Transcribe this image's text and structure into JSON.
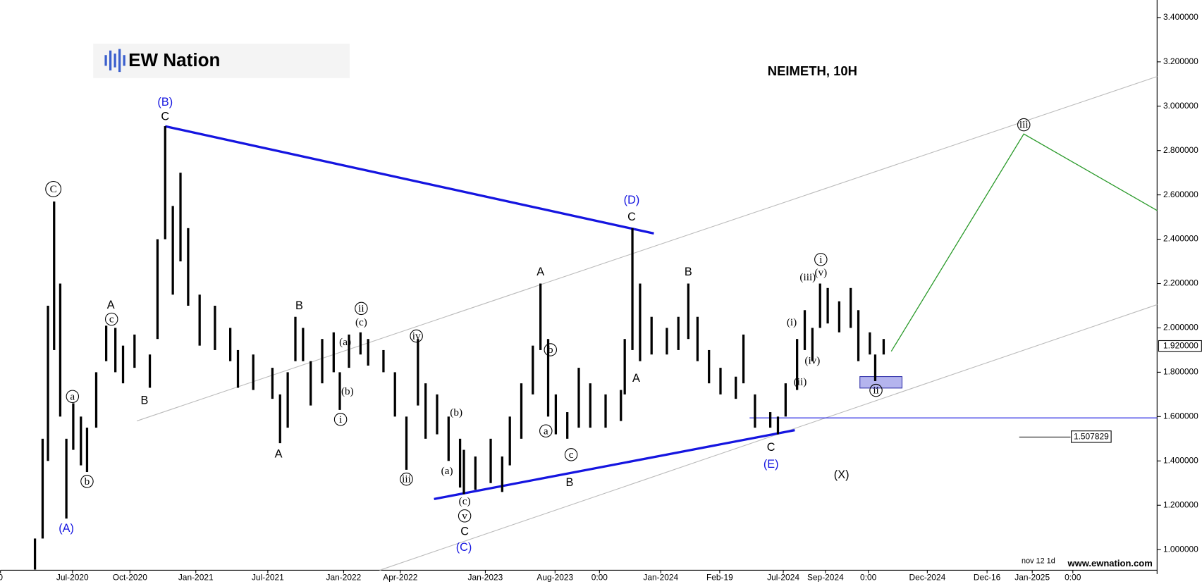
{
  "chart_data": {
    "type": "range_bar",
    "title": "NEIMETH, 10H",
    "logo": "EW Nation",
    "footer": "www.ewnation.com",
    "period_note": "nov 12 1d",
    "last_price_label": "1.920000",
    "level_label": "1.507829",
    "color": "#000000",
    "x": [
      4.5,
      5.5,
      6.2,
      7.0,
      7.8,
      8.6,
      9.5,
      10.5,
      11.3,
      12.5,
      13.8,
      15.0,
      16.0,
      17.5,
      19.5,
      20.5,
      21.5,
      22.5,
      23.5,
      24.5,
      26.0,
      28.0,
      30.0,
      31.0,
      33.0,
      35.5,
      36.5,
      37.5,
      38.5,
      39.5,
      40.5,
      42.0,
      43.5,
      44.3,
      45.5,
      47.0,
      48.0,
      50.0,
      51.5,
      53.0,
      54.5,
      55.5,
      57.0,
      58.5,
      60.0,
      60.5,
      62.0,
      64.0,
      65.5,
      66.5,
      68.0,
      69.5,
      70.5,
      71.5,
      72.5,
      74.0,
      75.5,
      77.0,
      79.0,
      81.0,
      81.5,
      82.5,
      83.5,
      85.0,
      87.0,
      88.5,
      89.8,
      91.0,
      92.5,
      94.0,
      96.0,
      97.0,
      98.5,
      100.5,
      101.5,
      102.5,
      104.0,
      105.0,
      106.0,
      107.0,
      108.0,
      109.5,
      111.0,
      112.0,
      113.5,
      114.2,
      115.3
    ],
    "low": [
      0.91,
      1.05,
      1.4,
      1.9,
      1.6,
      1.14,
      1.45,
      1.38,
      1.35,
      1.55,
      1.85,
      1.8,
      1.75,
      1.82,
      1.73,
      1.95,
      2.4,
      2.15,
      2.3,
      2.1,
      1.92,
      1.9,
      1.85,
      1.73,
      1.72,
      1.68,
      1.48,
      1.55,
      1.85,
      1.85,
      1.65,
      1.75,
      1.8,
      1.63,
      1.82,
      1.88,
      1.83,
      1.8,
      1.6,
      1.36,
      1.65,
      1.5,
      1.52,
      1.4,
      1.28,
      1.25,
      1.27,
      1.3,
      1.26,
      1.38,
      1.5,
      1.7,
      1.9,
      1.6,
      1.52,
      1.5,
      1.55,
      1.55,
      1.55,
      1.58,
      1.7,
      1.9,
      1.85,
      1.88,
      1.88,
      1.9,
      1.95,
      1.85,
      1.75,
      1.7,
      1.68,
      1.75,
      1.55,
      1.55,
      1.52,
      1.6,
      1.72,
      1.9,
      1.85,
      2.0,
      2.02,
      1.98,
      2.0,
      1.85,
      1.88,
      1.76,
      1.88
    ],
    "high": [
      1.05,
      1.5,
      2.1,
      2.57,
      2.2,
      1.5,
      1.66,
      1.6,
      1.55,
      1.8,
      2.01,
      2.0,
      1.92,
      1.97,
      1.88,
      2.4,
      2.91,
      2.55,
      2.7,
      2.45,
      2.15,
      2.1,
      2.0,
      1.9,
      1.88,
      1.82,
      1.7,
      1.8,
      2.05,
      2.0,
      1.85,
      1.95,
      1.98,
      1.8,
      1.97,
      1.98,
      1.95,
      1.9,
      1.8,
      1.6,
      1.95,
      1.75,
      1.7,
      1.6,
      1.5,
      1.45,
      1.42,
      1.5,
      1.42,
      1.6,
      1.75,
      1.92,
      2.2,
      1.95,
      1.7,
      1.62,
      1.82,
      1.75,
      1.7,
      1.72,
      1.95,
      2.45,
      2.2,
      2.05,
      2.0,
      2.05,
      2.2,
      2.05,
      1.9,
      1.82,
      1.78,
      1.97,
      1.7,
      1.62,
      1.6,
      1.75,
      1.95,
      2.08,
      2.0,
      2.2,
      2.18,
      2.12,
      2.18,
      2.08,
      1.98,
      1.88,
      1.95
    ],
    "xlim": [
      0,
      151
    ],
    "ylim": [
      0.907,
      3.479
    ],
    "xticks": [
      0,
      {
        "value": 9.4,
        "label": "Jul-2020"
      },
      {
        "value": 16.9,
        "label": "Oct-2020"
      },
      {
        "value": 25.5,
        "label": "Jan-2021"
      },
      {
        "value": 34.9,
        "label": "Jul-2021"
      },
      {
        "value": 44.8,
        "label": "Jan-2022"
      },
      {
        "value": 52.2,
        "label": "Apr-2022"
      },
      {
        "value": 63.3,
        "label": "Jan-2023"
      },
      {
        "value": 72.4,
        "label": "Aug-2023"
      },
      {
        "value": 78.2,
        "label": "0:00"
      },
      {
        "value": 86.2,
        "label": "Jan-2024"
      },
      {
        "value": 93.9,
        "label": "Feb-19"
      },
      {
        "value": 102.2,
        "label": "Jul-2024"
      },
      {
        "value": 107.7,
        "label": "Sep-2024"
      },
      {
        "value": 113.3,
        "label": "0:00"
      },
      {
        "value": 121.0,
        "label": "Dec-2024"
      },
      {
        "value": 128.8,
        "label": "Dec-16"
      },
      {
        "value": 134.7,
        "label": "Jan-2025"
      },
      {
        "value": 140.0,
        "label": "0:00"
      }
    ],
    "yticks": [
      {
        "value": 1.0,
        "label": "1.000000"
      },
      {
        "value": 1.2,
        "label": "1.200000"
      },
      {
        "value": 1.4,
        "label": "1.400000"
      },
      {
        "value": 1.6,
        "label": "1.600000"
      },
      {
        "value": 1.8,
        "label": "1.800000"
      },
      {
        "value": 2.0,
        "label": "2.000000"
      },
      {
        "value": 2.2,
        "label": "2.200000"
      },
      {
        "value": 2.4,
        "label": "2.400000"
      },
      {
        "value": 2.6,
        "label": "2.600000"
      },
      {
        "value": 2.8,
        "label": "2.800000"
      },
      {
        "value": 3.0,
        "label": "3.000000"
      },
      {
        "value": 3.2,
        "label": "3.200000"
      },
      {
        "value": 3.4,
        "label": "3.400000"
      }
    ],
    "annotations": [
      "(B)",
      "C",
      "C",
      "a",
      "b",
      "(A)",
      "A",
      "c",
      "B",
      "B",
      "A",
      "(a)",
      "(b)",
      "i",
      "ii",
      "(c)",
      "iv",
      "iii",
      "(b)",
      "(a)",
      "(c)",
      "v",
      "C",
      "(C)",
      "A",
      "b",
      "a",
      "c",
      "B",
      "(D)",
      "C",
      "A",
      "B",
      "C",
      "(E)",
      "(X)",
      "(i)",
      "(ii)",
      "(iii)",
      "(iv)",
      "(v)",
      "i",
      "ii",
      "iii"
    ]
  }
}
